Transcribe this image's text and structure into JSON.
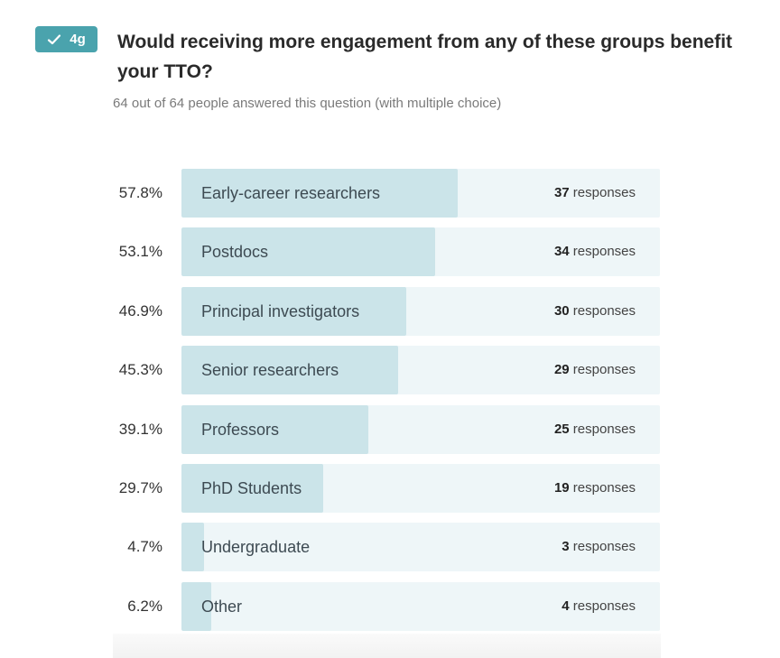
{
  "question": {
    "badge_label": "4g",
    "badge_icon": "check-icon",
    "title": "Would receiving more engagement from any of these groups benefit your TTO?",
    "meta": "64 out of 64 people answered this question (with multiple choice)"
  },
  "colors": {
    "badge_bg": "#4aa3ad",
    "track_bg": "#eef6f8",
    "fill_bg": "#cbe4e9"
  },
  "responses_word": "responses",
  "chart_data": {
    "type": "bar",
    "orientation": "horizontal",
    "title": "Would receiving more engagement from any of these groups benefit your TTO?",
    "xlabel": "",
    "ylabel": "",
    "xlim": [
      0,
      100
    ],
    "categories": [
      "Early-career researchers",
      "Postdocs",
      "Principal investigators",
      "Senior researchers",
      "Professors",
      "PhD Students",
      "Undergraduate",
      "Other"
    ],
    "percent_labels": [
      "57.8%",
      "53.1%",
      "46.9%",
      "45.3%",
      "39.1%",
      "29.7%",
      "4.7%",
      "6.2%"
    ],
    "values": [
      57.8,
      53.1,
      46.9,
      45.3,
      39.1,
      29.7,
      4.7,
      6.2
    ],
    "counts": [
      37,
      34,
      30,
      29,
      25,
      19,
      3,
      4
    ]
  }
}
